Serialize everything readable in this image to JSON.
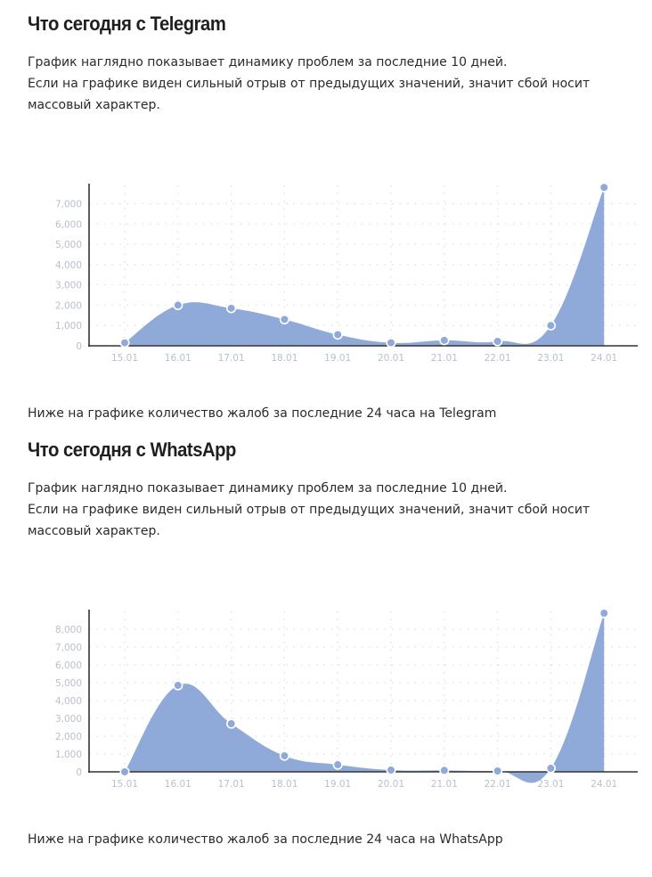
{
  "sections": [
    {
      "title": "Что сегодня с Telegram",
      "desc_line1": "График наглядно показывает динамику проблем за последние 10 дней.",
      "desc_line2": "Если на графике виден сильный отрыв от предыдущих значений, значит сбой носит массовый характер.",
      "note": "Ниже на графике количество жалоб за последние 24 часа на Telegram"
    },
    {
      "title": "Что сегодня с WhatsApp",
      "desc_line1": "График наглядно показывает динамику проблем за последние 10 дней.",
      "desc_line2": "Если на графике виден сильный отрыв от предыдущих значений, значит сбой носит массовый характер.",
      "note": "Ниже на графике количество жалоб за последние 24 часа на WhatsApp"
    }
  ],
  "colors": {
    "area_fill": "#8faad8",
    "point_fill": "#8faad8",
    "point_stroke": "#ffffff",
    "axis": "#333333",
    "grid": "#d9dde6"
  },
  "chart_data": [
    {
      "type": "area",
      "title": "",
      "xlabel": "",
      "ylabel": "",
      "categories": [
        "15.01",
        "16.01",
        "17.01",
        "18.01",
        "19.01",
        "20.01",
        "21.01",
        "22.01",
        "23.01",
        "24.01"
      ],
      "values": [
        150,
        2000,
        1850,
        1300,
        550,
        150,
        270,
        220,
        1000,
        7800
      ],
      "yticks": [
        0,
        1000,
        2000,
        3000,
        4000,
        5000,
        6000,
        7000
      ],
      "ytick_labels": [
        "0",
        "1,000",
        "2,000",
        "3,000",
        "4,000",
        "5,000",
        "6,000",
        "7,000"
      ],
      "ylim": [
        0,
        7900
      ],
      "grid": true,
      "legend": "none"
    },
    {
      "type": "area",
      "title": "",
      "xlabel": "",
      "ylabel": "",
      "categories": [
        "15.01",
        "16.01",
        "17.01",
        "18.01",
        "19.01",
        "20.01",
        "21.01",
        "22.01",
        "23.01",
        "24.01"
      ],
      "values": [
        0,
        4850,
        2700,
        900,
        400,
        100,
        80,
        50,
        200,
        8900
      ],
      "yticks": [
        0,
        1000,
        2000,
        3000,
        4000,
        5000,
        6000,
        7000,
        8000
      ],
      "ytick_labels": [
        "0",
        "1,000",
        "2,000",
        "3,000",
        "4,000",
        "5,000",
        "6,000",
        "7,000",
        "8,000"
      ],
      "ylim": [
        0,
        9000
      ],
      "grid": true,
      "legend": "none"
    }
  ]
}
